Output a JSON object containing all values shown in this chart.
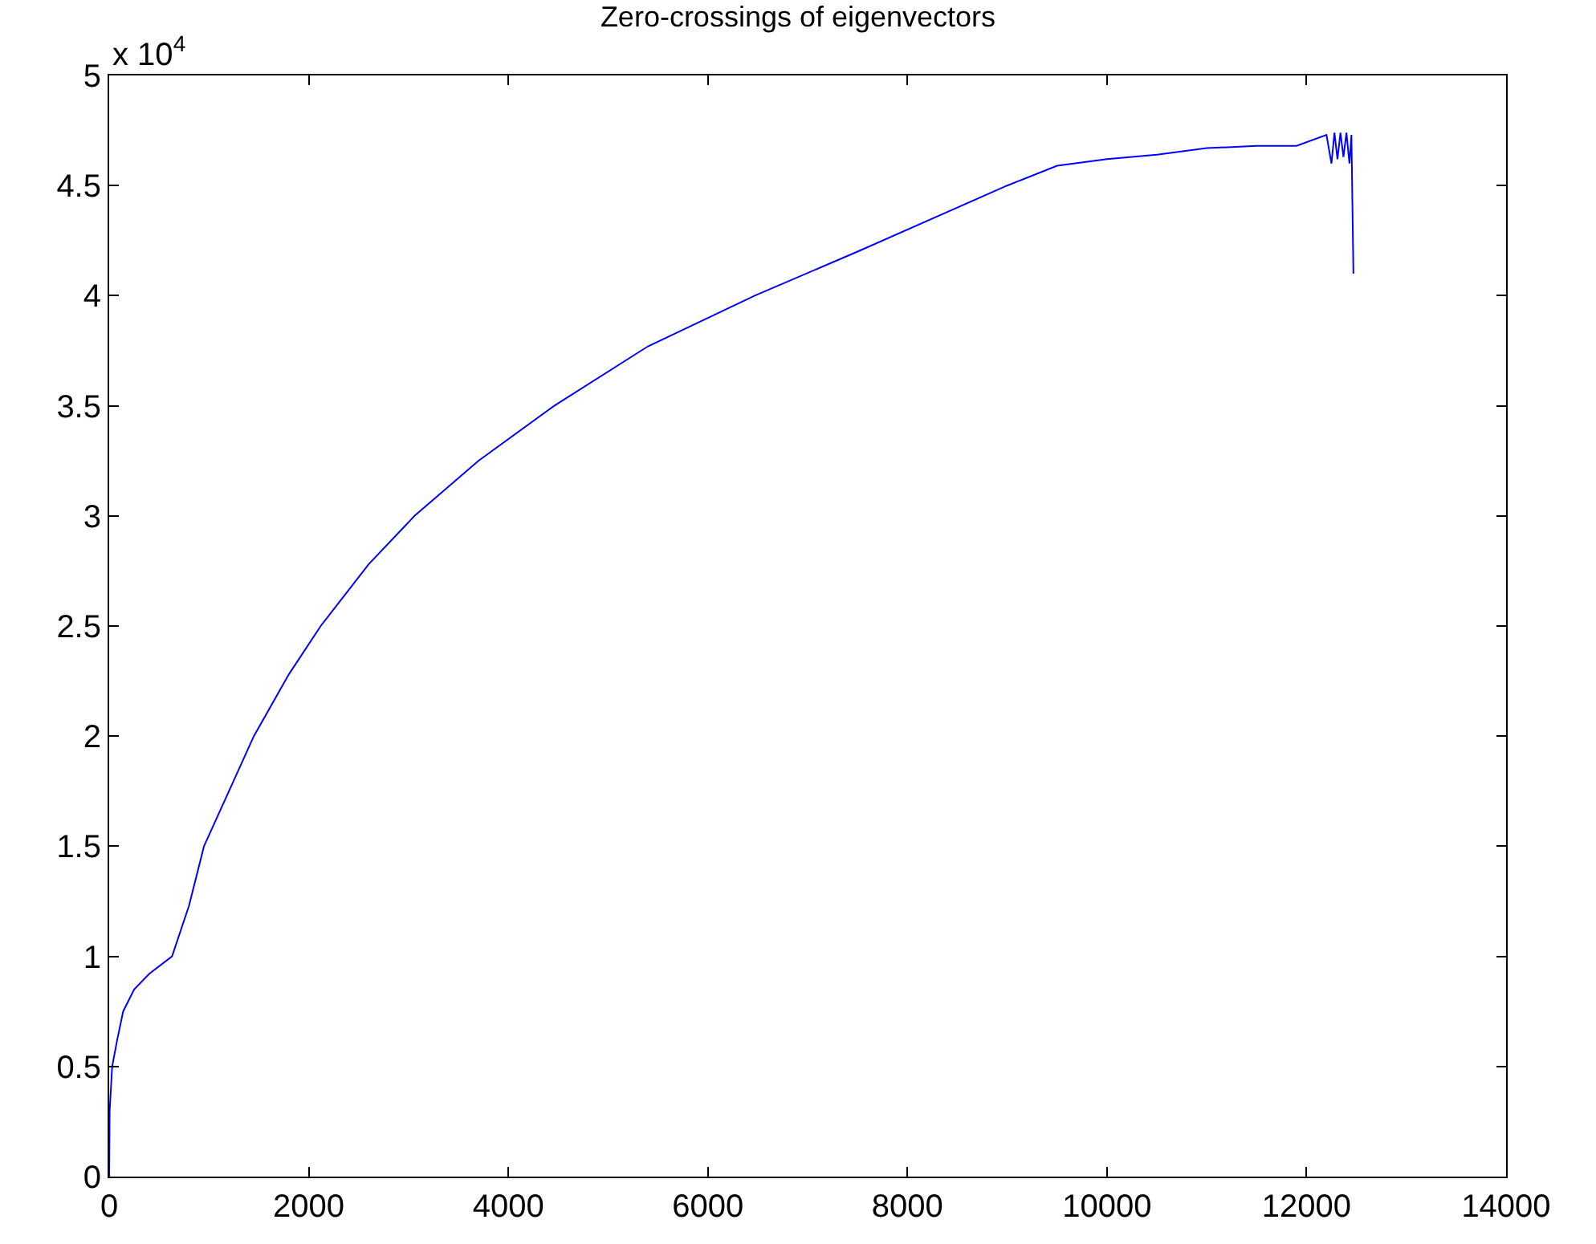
{
  "chart_data": {
    "type": "line",
    "title": "Zero-crossings of eigenvectors",
    "annotations": [
      "x 10$^{4}$"
    ],
    "x": [
      0,
      5,
      30,
      80,
      140,
      250,
      400,
      630,
      800,
      950,
      1200,
      1450,
      1800,
      2120,
      2600,
      3060,
      3700,
      4460,
      5400,
      6470,
      7500,
      8400,
      9000,
      9500,
      10000,
      10500,
      11000,
      11500,
      11900,
      12200,
      12250,
      12280,
      12310,
      12340,
      12370,
      12400,
      12430,
      12450,
      12470
    ],
    "series": [
      {
        "color": "#0000ff",
        "values": [
          0,
          0.3,
          0.5,
          0.62,
          0.75,
          0.85,
          0.92,
          1.0,
          1.23,
          1.5,
          1.75,
          2.0,
          2.28,
          2.5,
          2.78,
          3.0,
          3.25,
          3.5,
          3.77,
          4.0,
          4.2,
          4.38,
          4.5,
          4.59,
          4.62,
          4.64,
          4.67,
          4.68,
          4.68,
          4.73,
          4.6,
          4.74,
          4.62,
          4.74,
          4.63,
          4.74,
          4.6,
          4.73,
          4.1
        ]
      }
    ],
    "xlim": [
      0,
      14000
    ],
    "xticks": [
      0,
      2000,
      4000,
      6000,
      8000,
      10000,
      12000,
      14000
    ],
    "ylim": [
      0,
      5
    ],
    "yticks": [
      0,
      0.5,
      1,
      1.5,
      2,
      2.5,
      3,
      3.5,
      4,
      4.5,
      5
    ],
    "marker": "none",
    "line_style": "solid"
  }
}
